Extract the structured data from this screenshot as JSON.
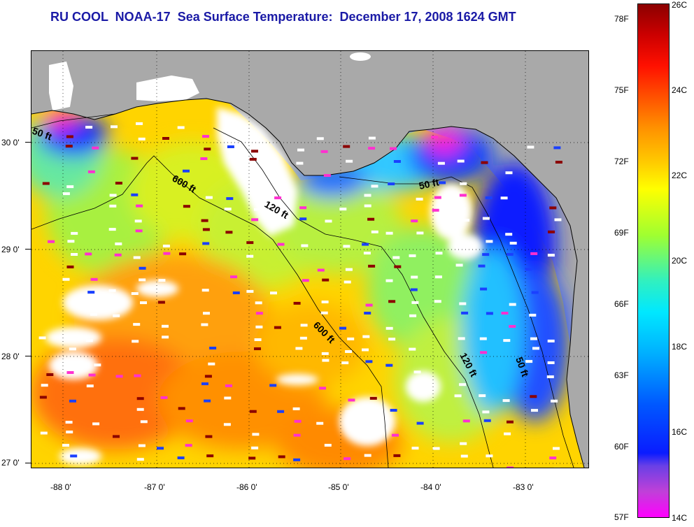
{
  "title": "RU COOL  NOAA-17  Sea Surface Temperature:  December 17, 2008 1624 GMT",
  "latitude_labels": [
    "30 0'",
    "29 0'",
    "28 0'",
    "27 0'"
  ],
  "longitude_labels": [
    "-88 0'",
    "-87 0'",
    "-86 0'",
    "-85 0'",
    "-84 0'",
    "-83 0'"
  ],
  "contour_labels": [
    "50 ft",
    "600 ft",
    "120 ft",
    "50 ft",
    "600 ft",
    "120 ft",
    "50 ft"
  ],
  "colorbar": {
    "fahrenheit": [
      "78F",
      "75F",
      "72F",
      "69F",
      "66F",
      "63F",
      "60F",
      "57F"
    ],
    "celsius": [
      "26C",
      "24C",
      "22C",
      "20C",
      "18C",
      "16C",
      "14C"
    ],
    "range_c": [
      14,
      26
    ]
  },
  "colors": {
    "title": "#1a1aa6",
    "land": "#a9a9a9",
    "cloud": "#ffffff",
    "warm": "#ff9000",
    "cool": "#0a1cff"
  }
}
